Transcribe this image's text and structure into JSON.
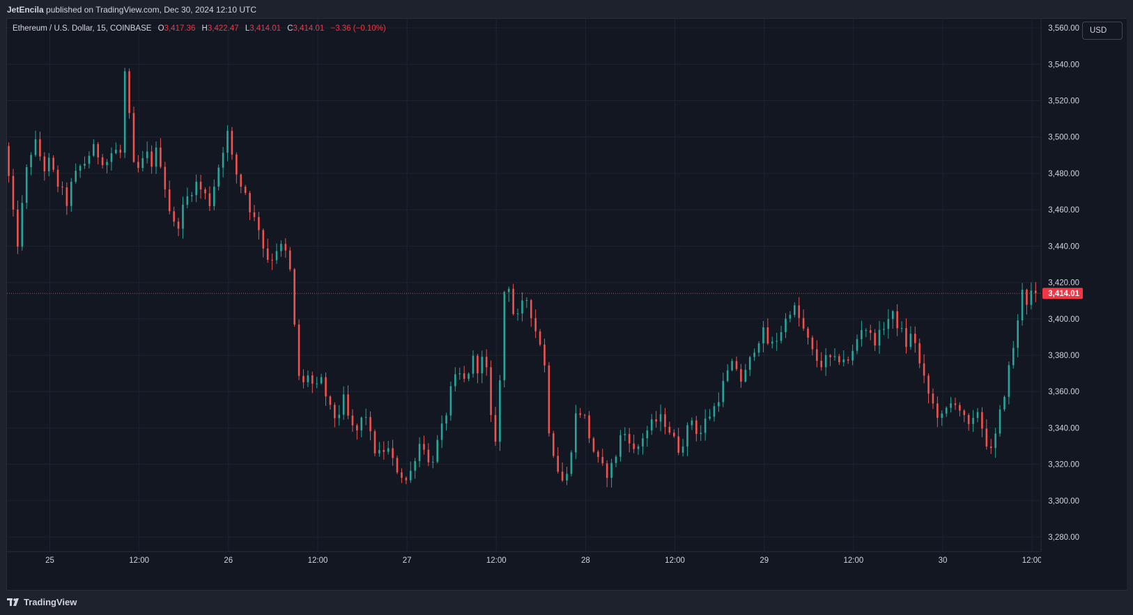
{
  "publisher": {
    "user": "JetEncila",
    "text": "published on TradingView.com, Dec 30, 2024 12:10 UTC"
  },
  "legend": {
    "symbol": "Ethereum / U.S. Dollar, 15, COINBASE",
    "open_label": "O",
    "open": "3,417.36",
    "high_label": "H",
    "high": "3,422.47",
    "low_label": "L",
    "low": "3,414.01",
    "close_label": "C",
    "close": "3,414.01",
    "change": "−3.36 (−0.10%)"
  },
  "currency_button": "USD",
  "brand": "TradingView",
  "colors": {
    "up": "#26a69a",
    "down": "#ef5350",
    "background": "#131722",
    "grid": "#1f2330",
    "text": "#d1d4dc",
    "last_price": "#f23645"
  },
  "chart_data": {
    "type": "candlestick",
    "interval": "15",
    "ylim": [
      3272,
      3565
    ],
    "y_ticks": [
      "3,280.00",
      "3,300.00",
      "3,320.00",
      "3,340.00",
      "3,360.00",
      "3,380.00",
      "3,400.00",
      "3,420.00",
      "3,440.00",
      "3,460.00",
      "3,480.00",
      "3,500.00",
      "3,520.00",
      "3,540.00",
      "3,560.00"
    ],
    "y_tick_values": [
      3280,
      3300,
      3320,
      3340,
      3360,
      3380,
      3400,
      3420,
      3440,
      3460,
      3480,
      3500,
      3520,
      3540,
      3560
    ],
    "x_ticks": [
      {
        "label": "25",
        "t": 1.0
      },
      {
        "label": "12:00",
        "t": 6.0
      },
      {
        "label": "26",
        "t": 11.0
      },
      {
        "label": "12:00",
        "t": 16.0
      },
      {
        "label": "27",
        "t": 21.0
      },
      {
        "label": "12:00",
        "t": 26.0
      },
      {
        "label": "28",
        "t": 31.0
      },
      {
        "label": "12:00",
        "t": 36.0
      },
      {
        "label": "29",
        "t": 41.0
      },
      {
        "label": "12:00",
        "t": 46.0
      },
      {
        "label": "30",
        "t": 51.0
      },
      {
        "label": "12:00",
        "t": 56.0
      }
    ],
    "x_range_hours": [
      -1.4,
      56.5
    ],
    "last_price": 3414.01,
    "last_price_label": "3,414.01",
    "path": [
      [
        -1.4,
        3500
      ],
      [
        -1.2,
        3490
      ],
      [
        -0.9,
        3465
      ],
      [
        -0.6,
        3440
      ],
      [
        -0.4,
        3448
      ],
      [
        -0.2,
        3475
      ],
      [
        0.2,
        3492
      ],
      [
        0.5,
        3497
      ],
      [
        0.9,
        3482
      ],
      [
        1.2,
        3486
      ],
      [
        1.6,
        3476
      ],
      [
        1.9,
        3470
      ],
      [
        2.2,
        3464
      ],
      [
        2.5,
        3475
      ],
      [
        2.9,
        3483
      ],
      [
        3.3,
        3487
      ],
      [
        3.6,
        3494
      ],
      [
        4.0,
        3490
      ],
      [
        4.4,
        3486
      ],
      [
        4.8,
        3493
      ],
      [
        5.2,
        3491
      ],
      [
        5.4,
        3540
      ],
      [
        5.6,
        3520
      ],
      [
        5.8,
        3500
      ],
      [
        6.0,
        3478
      ],
      [
        6.3,
        3484
      ],
      [
        6.7,
        3490
      ],
      [
        7.0,
        3485
      ],
      [
        7.3,
        3495
      ],
      [
        7.6,
        3478
      ],
      [
        8.0,
        3458
      ],
      [
        8.3,
        3448
      ],
      [
        8.6,
        3458
      ],
      [
        9.0,
        3468
      ],
      [
        9.4,
        3475
      ],
      [
        9.8,
        3470
      ],
      [
        10.2,
        3464
      ],
      [
        10.6,
        3480
      ],
      [
        11.0,
        3496
      ],
      [
        11.2,
        3502
      ],
      [
        11.4,
        3490
      ],
      [
        11.8,
        3476
      ],
      [
        12.2,
        3470
      ],
      [
        12.6,
        3456
      ],
      [
        13.0,
        3450
      ],
      [
        13.3,
        3435
      ],
      [
        13.6,
        3432
      ],
      [
        14.0,
        3440
      ],
      [
        14.4,
        3438
      ],
      [
        14.8,
        3422
      ],
      [
        15.0,
        3386
      ],
      [
        15.3,
        3360
      ],
      [
        15.7,
        3370
      ],
      [
        16.1,
        3360
      ],
      [
        16.5,
        3366
      ],
      [
        16.9,
        3350
      ],
      [
        17.3,
        3345
      ],
      [
        17.7,
        3355
      ],
      [
        18.1,
        3340
      ],
      [
        18.5,
        3338
      ],
      [
        18.9,
        3350
      ],
      [
        19.3,
        3330
      ],
      [
        19.7,
        3325
      ],
      [
        20.1,
        3330
      ],
      [
        20.5,
        3320
      ],
      [
        20.9,
        3315
      ],
      [
        21.3,
        3310
      ],
      [
        21.7,
        3325
      ],
      [
        22.1,
        3335
      ],
      [
        22.5,
        3318
      ],
      [
        22.9,
        3330
      ],
      [
        23.3,
        3342
      ],
      [
        23.7,
        3360
      ],
      [
        24.1,
        3370
      ],
      [
        24.5,
        3365
      ],
      [
        24.9,
        3378
      ],
      [
        25.3,
        3372
      ],
      [
        25.6,
        3382
      ],
      [
        25.9,
        3350
      ],
      [
        26.1,
        3325
      ],
      [
        26.4,
        3355
      ],
      [
        26.7,
        3415
      ],
      [
        27.0,
        3420
      ],
      [
        27.3,
        3395
      ],
      [
        27.6,
        3405
      ],
      [
        28.0,
        3412
      ],
      [
        28.4,
        3395
      ],
      [
        28.8,
        3385
      ],
      [
        29.0,
        3370
      ],
      [
        29.2,
        3340
      ],
      [
        29.6,
        3320
      ],
      [
        30.0,
        3310
      ],
      [
        30.3,
        3315
      ],
      [
        30.6,
        3345
      ],
      [
        30.9,
        3350
      ],
      [
        31.2,
        3345
      ],
      [
        31.6,
        3330
      ],
      [
        32.0,
        3320
      ],
      [
        32.4,
        3315
      ],
      [
        32.8,
        3320
      ],
      [
        33.2,
        3335
      ],
      [
        33.6,
        3338
      ],
      [
        34.0,
        3325
      ],
      [
        34.4,
        3335
      ],
      [
        34.8,
        3340
      ],
      [
        35.2,
        3344
      ],
      [
        35.6,
        3345
      ],
      [
        36.0,
        3338
      ],
      [
        36.4,
        3328
      ],
      [
        36.8,
        3335
      ],
      [
        37.2,
        3345
      ],
      [
        37.6,
        3335
      ],
      [
        38.0,
        3345
      ],
      [
        38.4,
        3350
      ],
      [
        38.8,
        3360
      ],
      [
        39.2,
        3370
      ],
      [
        39.6,
        3376
      ],
      [
        40.0,
        3365
      ],
      [
        40.4,
        3375
      ],
      [
        40.8,
        3388
      ],
      [
        41.2,
        3392
      ],
      [
        41.6,
        3384
      ],
      [
        42.0,
        3390
      ],
      [
        42.4,
        3398
      ],
      [
        42.8,
        3408
      ],
      [
        43.2,
        3400
      ],
      [
        43.6,
        3390
      ],
      [
        44.0,
        3380
      ],
      [
        44.4,
        3375
      ],
      [
        44.8,
        3378
      ],
      [
        45.2,
        3376
      ],
      [
        45.6,
        3380
      ],
      [
        46.0,
        3375
      ],
      [
        46.4,
        3388
      ],
      [
        46.8,
        3398
      ],
      [
        47.2,
        3390
      ],
      [
        47.6,
        3388
      ],
      [
        48.0,
        3398
      ],
      [
        48.4,
        3402
      ],
      [
        48.8,
        3396
      ],
      [
        49.2,
        3386
      ],
      [
        49.6,
        3393
      ],
      [
        50.0,
        3372
      ],
      [
        50.4,
        3360
      ],
      [
        50.8,
        3350
      ],
      [
        51.2,
        3345
      ],
      [
        51.6,
        3352
      ],
      [
        52.0,
        3356
      ],
      [
        52.4,
        3345
      ],
      [
        52.8,
        3338
      ],
      [
        53.2,
        3350
      ],
      [
        53.6,
        3335
      ],
      [
        54.0,
        3325
      ],
      [
        54.4,
        3345
      ],
      [
        54.8,
        3365
      ],
      [
        55.2,
        3385
      ],
      [
        55.5,
        3400
      ],
      [
        55.7,
        3418
      ],
      [
        56.0,
        3408
      ],
      [
        56.2,
        3414
      ]
    ]
  }
}
